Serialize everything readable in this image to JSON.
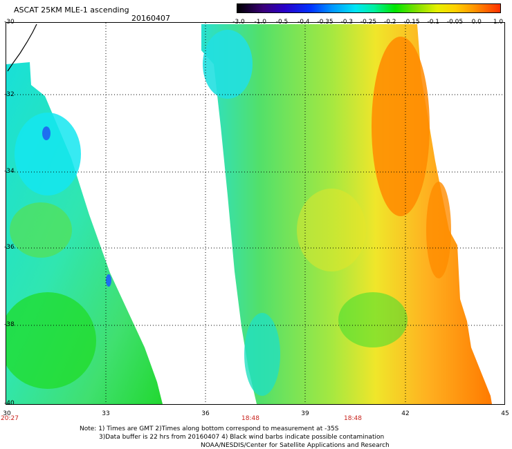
{
  "header": {
    "title": "ASCAT 25KM MLE-1 ascending",
    "date": "20160407"
  },
  "colorbar": {
    "labels": [
      "-3.0",
      "-1.0",
      "-0.5",
      "-0.4",
      "-0.35",
      "-0.3",
      "-0.25",
      "-0.2",
      "-0.15",
      "-0.1",
      "-0.05",
      "0.0",
      "1.0"
    ]
  },
  "axes": {
    "y_ticks": [
      "-30",
      "-32",
      "-34",
      "-36",
      "-38",
      "-40"
    ],
    "x_ticks": [
      "30",
      "33",
      "36",
      "39",
      "42",
      "45"
    ],
    "pass_times": [
      "20:27",
      "18:48",
      "18:48"
    ]
  },
  "notes": [
    "Note: 1) Times are GMT 2)Times along bottom correspond to measurement at -35S",
    "3)Data buffer is 22 hrs from 20160407 4) Black wind barbs indicate possible contamination",
    "NOAA/NESDIS/Center for Satellite Applications and Research"
  ],
  "colors": {
    "swath_west_main": "#2de0a0",
    "swath_east_main": "#8ee83a",
    "high_values": "#ff8c00"
  }
}
